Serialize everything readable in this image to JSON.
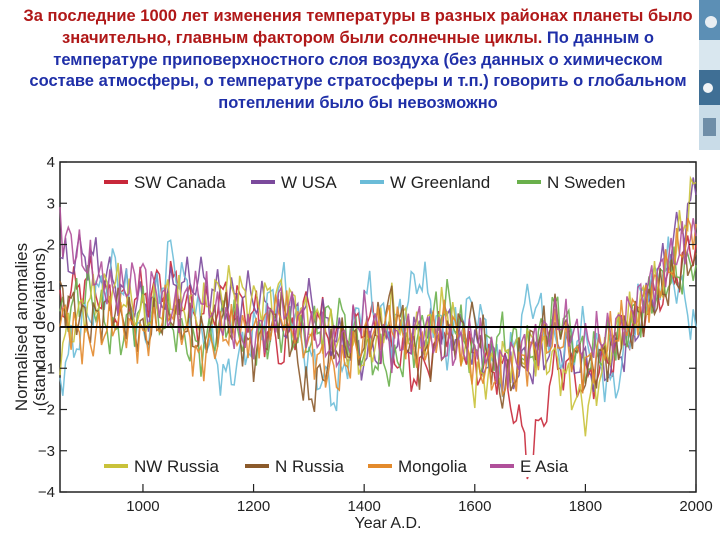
{
  "slide": {
    "caption_red": "За последние 1000 лет изменения температуры в разных районах планеты было значительно, главным фактором были солнечные циклы.",
    "caption_blue": " По данным о температуре приповерхностного слоя воздуха (без данных о химическом составе атмосферы, о температуре стратосферы и т.п.)  говорить о глобальном потеплении было бы невозможно",
    "colors": {
      "red_text": "#b01818",
      "blue_text": "#1f2fa8"
    }
  },
  "chart_data": {
    "type": "line",
    "title": "",
    "xlabel": "Year A.D.",
    "ylabel": "Normalised anomalies",
    "ylabel_sub": "(standard deviations)",
    "xlim": [
      850,
      2000
    ],
    "ylim": [
      -4,
      4
    ],
    "xticks": [
      1000,
      1200,
      1400,
      1600,
      1800,
      2000
    ],
    "yticks": [
      -4,
      -3,
      -2,
      -1,
      0,
      1,
      2,
      3,
      4
    ],
    "grid": false,
    "zero_line": true,
    "legend_top": [
      "SW Canada",
      "W USA",
      "W Greenland",
      "N Sweden"
    ],
    "legend_bottom": [
      "NW Russia",
      "N Russia",
      "Mongolia",
      "E Asia"
    ],
    "series": [
      {
        "name": "SW Canada",
        "color": "#c8283a",
        "points": [
          [
            850,
            0.5
          ],
          [
            900,
            1.2
          ],
          [
            950,
            0.4
          ],
          [
            1000,
            0.8
          ],
          [
            1050,
            1.1
          ],
          [
            1100,
            0.2
          ],
          [
            1150,
            0.7
          ],
          [
            1200,
            0.3
          ],
          [
            1250,
            -0.6
          ],
          [
            1300,
            0.5
          ],
          [
            1350,
            -0.4
          ],
          [
            1400,
            0.2
          ],
          [
            1450,
            -0.5
          ],
          [
            1500,
            -1.2
          ],
          [
            1550,
            0.1
          ],
          [
            1600,
            -0.9
          ],
          [
            1650,
            -1.0
          ],
          [
            1700,
            -3.3
          ],
          [
            1750,
            -0.8
          ],
          [
            1800,
            -1.4
          ],
          [
            1850,
            -0.6
          ],
          [
            1900,
            0.3
          ],
          [
            1950,
            1.1
          ],
          [
            2000,
            2.0
          ]
        ]
      },
      {
        "name": "W USA",
        "color": "#7b4a9c",
        "points": [
          [
            850,
            1.5
          ],
          [
            900,
            1.8
          ],
          [
            950,
            1.0
          ],
          [
            1000,
            0.5
          ],
          [
            1050,
            0.9
          ],
          [
            1100,
            1.2
          ],
          [
            1150,
            0.6
          ],
          [
            1200,
            0.8
          ],
          [
            1250,
            0.0
          ],
          [
            1300,
            0.6
          ],
          [
            1350,
            -0.3
          ],
          [
            1400,
            -0.7
          ],
          [
            1450,
            -0.4
          ],
          [
            1500,
            -0.2
          ],
          [
            1550,
            0.1
          ],
          [
            1600,
            -0.5
          ],
          [
            1650,
            -1.1
          ],
          [
            1700,
            -0.9
          ],
          [
            1750,
            -0.3
          ],
          [
            1800,
            -1.0
          ],
          [
            1850,
            -0.9
          ],
          [
            1900,
            0.2
          ],
          [
            1950,
            1.8
          ],
          [
            2000,
            3.2
          ]
        ]
      },
      {
        "name": "W Greenland",
        "color": "#6bbcd8",
        "points": [
          [
            850,
            -1.2
          ],
          [
            900,
            0.3
          ],
          [
            950,
            1.5
          ],
          [
            1000,
            -0.4
          ],
          [
            1050,
            1.8
          ],
          [
            1100,
            0.2
          ],
          [
            1150,
            -1.3
          ],
          [
            1200,
            -0.2
          ],
          [
            1250,
            1.1
          ],
          [
            1300,
            -0.8
          ],
          [
            1350,
            -1.7
          ],
          [
            1400,
            0.9
          ],
          [
            1450,
            -0.2
          ],
          [
            1500,
            1.3
          ],
          [
            1550,
            -0.5
          ],
          [
            1600,
            0.6
          ],
          [
            1650,
            -1.4
          ],
          [
            1700,
            0.8
          ],
          [
            1750,
            -0.6
          ],
          [
            1800,
            -0.1
          ],
          [
            1850,
            -1.6
          ],
          [
            1900,
            0.7
          ],
          [
            1950,
            1.5
          ],
          [
            2000,
            0.0
          ]
        ]
      },
      {
        "name": "N Sweden",
        "color": "#6ab04c",
        "points": [
          [
            850,
            0.2
          ],
          [
            900,
            0.9
          ],
          [
            950,
            -0.3
          ],
          [
            1000,
            0.4
          ],
          [
            1050,
            0.1
          ],
          [
            1100,
            -0.6
          ],
          [
            1150,
            0.2
          ],
          [
            1200,
            -0.4
          ],
          [
            1250,
            0.0
          ],
          [
            1300,
            -0.3
          ],
          [
            1350,
            0.4
          ],
          [
            1400,
            -0.6
          ],
          [
            1450,
            -1.0
          ],
          [
            1500,
            -0.2
          ],
          [
            1550,
            0.6
          ],
          [
            1600,
            -0.8
          ],
          [
            1650,
            -0.2
          ],
          [
            1700,
            -0.7
          ],
          [
            1750,
            0.5
          ],
          [
            1800,
            -0.9
          ],
          [
            1850,
            -0.3
          ],
          [
            1900,
            0.4
          ],
          [
            1950,
            1.2
          ],
          [
            2000,
            1.5
          ]
        ]
      },
      {
        "name": "NW Russia",
        "color": "#c9c23a",
        "points": [
          [
            850,
            -0.5
          ],
          [
            900,
            0.6
          ],
          [
            950,
            1.0
          ],
          [
            1000,
            0.2
          ],
          [
            1050,
            0.7
          ],
          [
            1100,
            0.3
          ],
          [
            1150,
            1.0
          ],
          [
            1200,
            0.6
          ],
          [
            1250,
            0.8
          ],
          [
            1300,
            0.2
          ],
          [
            1350,
            -0.2
          ],
          [
            1400,
            -0.8
          ],
          [
            1450,
            0.4
          ],
          [
            1500,
            -0.4
          ],
          [
            1550,
            0.5
          ],
          [
            1600,
            -1.4
          ],
          [
            1650,
            -0.8
          ],
          [
            1700,
            -0.4
          ],
          [
            1750,
            -0.9
          ],
          [
            1800,
            -2.1
          ],
          [
            1850,
            -0.3
          ],
          [
            1900,
            0.5
          ],
          [
            1950,
            1.3
          ],
          [
            2000,
            3.5
          ]
        ]
      },
      {
        "name": "N Russia",
        "color": "#8b5a2b",
        "points": [
          [
            850,
            0.8
          ],
          [
            900,
            0.1
          ],
          [
            950,
            0.5
          ],
          [
            1000,
            -0.2
          ],
          [
            1050,
            0.4
          ],
          [
            1100,
            -0.3
          ],
          [
            1150,
            0.3
          ],
          [
            1200,
            -0.7
          ],
          [
            1250,
            0.5
          ],
          [
            1300,
            -1.8
          ],
          [
            1350,
            -0.4
          ],
          [
            1400,
            -0.5
          ],
          [
            1450,
            0.6
          ],
          [
            1500,
            -0.9
          ],
          [
            1550,
            -0.3
          ],
          [
            1600,
            0.2
          ],
          [
            1650,
            -1.6
          ],
          [
            1700,
            -0.5
          ],
          [
            1750,
            0.3
          ],
          [
            1800,
            -1.2
          ],
          [
            1850,
            -0.5
          ],
          [
            1900,
            0.3
          ],
          [
            1950,
            1.0
          ],
          [
            2000,
            1.8
          ]
        ]
      },
      {
        "name": "Mongolia",
        "color": "#e38a2c",
        "points": [
          [
            850,
            0.3
          ],
          [
            900,
            -0.4
          ],
          [
            950,
            0.2
          ],
          [
            1000,
            -0.3
          ],
          [
            1050,
            0.5
          ],
          [
            1100,
            -0.8
          ],
          [
            1150,
            -0.1
          ],
          [
            1200,
            -0.2
          ],
          [
            1250,
            0.4
          ],
          [
            1300,
            -0.5
          ],
          [
            1350,
            -1.2
          ],
          [
            1400,
            -0.3
          ],
          [
            1450,
            0.2
          ],
          [
            1500,
            -0.6
          ],
          [
            1550,
            0.2
          ],
          [
            1600,
            -0.9
          ],
          [
            1650,
            -1.3
          ],
          [
            1700,
            -0.7
          ],
          [
            1750,
            -0.2
          ],
          [
            1800,
            -1.0
          ],
          [
            1850,
            -0.2
          ],
          [
            1900,
            0.5
          ],
          [
            1950,
            1.4
          ],
          [
            2000,
            2.5
          ]
        ]
      },
      {
        "name": "E Asia",
        "color": "#b0509a",
        "points": [
          [
            850,
            2.4
          ],
          [
            900,
            1.5
          ],
          [
            950,
            0.8
          ],
          [
            1000,
            1.3
          ],
          [
            1050,
            0.3
          ],
          [
            1100,
            0.9
          ],
          [
            1150,
            0.1
          ],
          [
            1200,
            -0.3
          ],
          [
            1250,
            0.6
          ],
          [
            1300,
            0.0
          ],
          [
            1350,
            -0.6
          ],
          [
            1400,
            0.3
          ],
          [
            1450,
            -0.5
          ],
          [
            1500,
            0.1
          ],
          [
            1550,
            -0.6
          ],
          [
            1600,
            -0.3
          ],
          [
            1650,
            -0.9
          ],
          [
            1700,
            -0.5
          ],
          [
            1750,
            0.2
          ],
          [
            1800,
            -0.4
          ],
          [
            1850,
            -0.1
          ],
          [
            1900,
            0.7
          ],
          [
            1950,
            1.6
          ],
          [
            2000,
            2.2
          ]
        ]
      }
    ]
  }
}
